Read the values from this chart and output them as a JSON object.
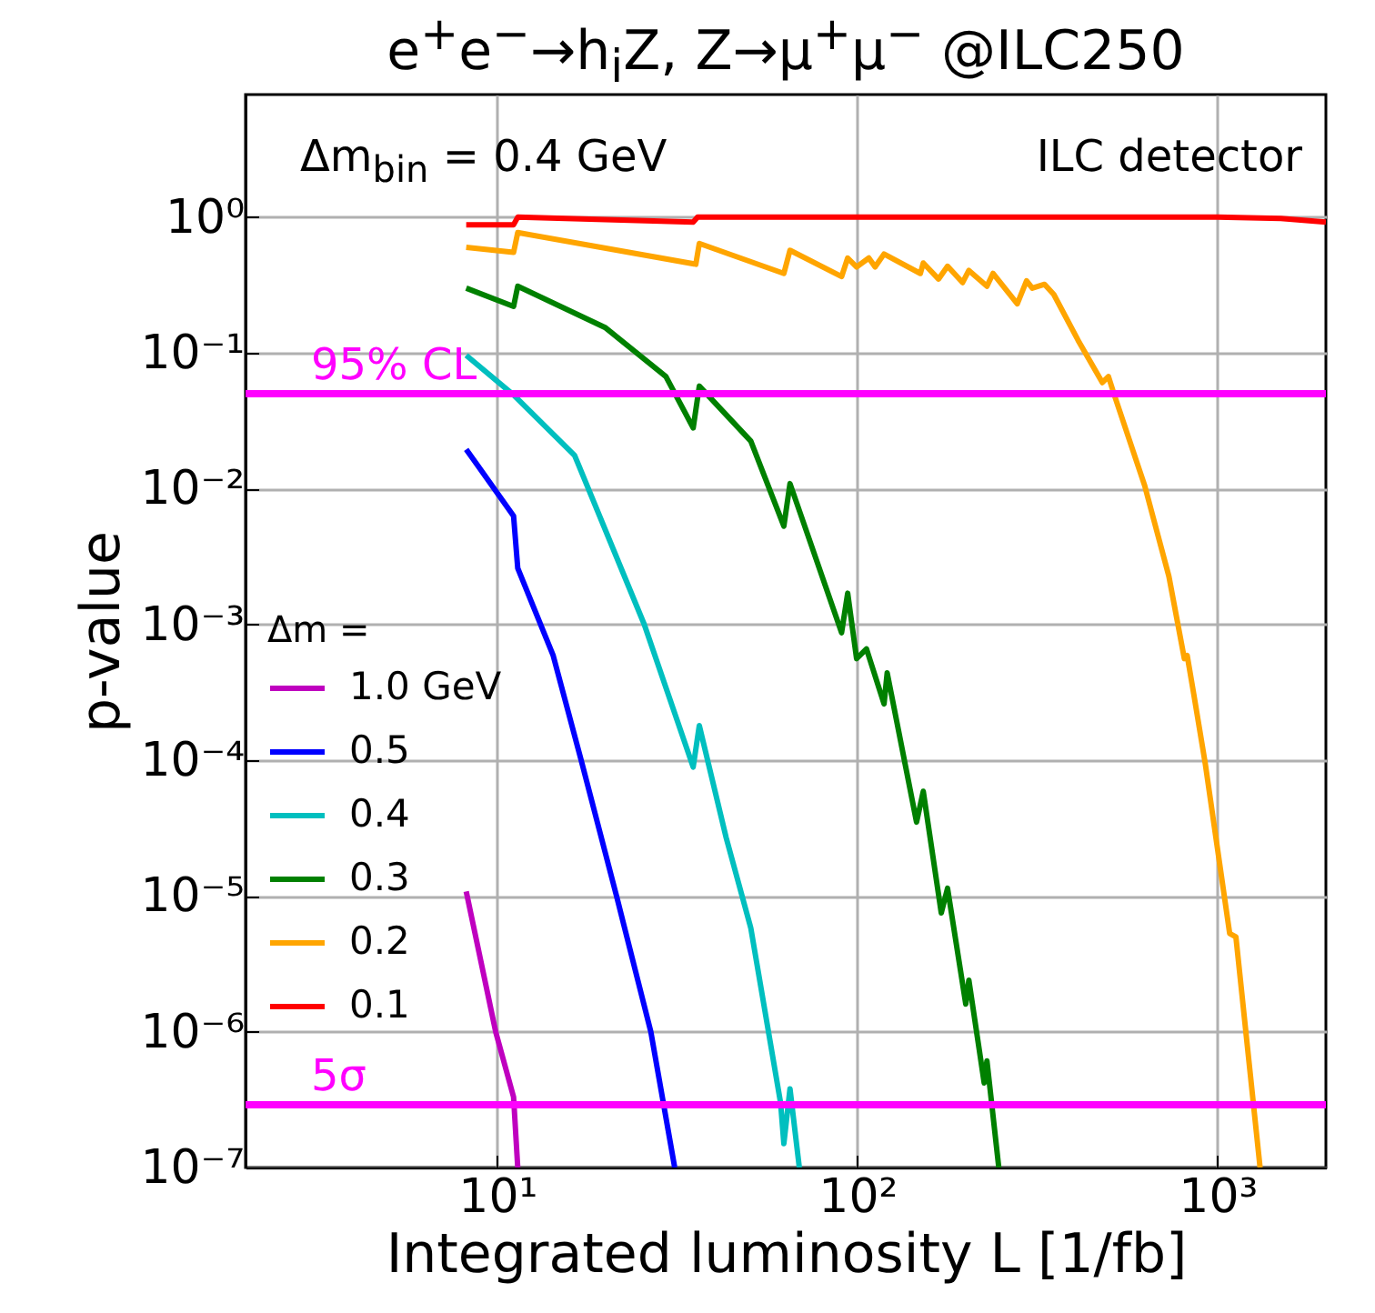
{
  "chart_data": {
    "type": "line",
    "title": "e$^{+}$e$^{−}$→h$_{i}$Z, Z→μ$^{+}$μ$^{−}$ @ILC250",
    "xlabel": "Integrated luminosity L [1/fb]",
    "ylabel": "p-value",
    "legend_title": "Δm =",
    "annotations": [
      "Δm$_{bin}$ = 0.4 GeV",
      "ILC detector"
    ],
    "log": "xy",
    "grid": true,
    "legend": "left",
    "xlim": [
      2,
      2000
    ],
    "ylim": [
      1e-07,
      8
    ],
    "xticks": [
      {
        "value": 10,
        "label": "10¹"
      },
      {
        "value": 100,
        "label": "10²"
      },
      {
        "value": 1000,
        "label": "10³"
      }
    ],
    "yticks": [
      {
        "value": 1e-07,
        "label": "10⁻⁷"
      },
      {
        "value": 1e-06,
        "label": "10⁻⁶"
      },
      {
        "value": 1e-05,
        "label": "10⁻⁵"
      },
      {
        "value": 0.0001,
        "label": "10⁻⁴"
      },
      {
        "value": 0.001,
        "label": "10⁻³"
      },
      {
        "value": 0.01,
        "label": "10⁻²"
      },
      {
        "value": 0.1,
        "label": "10⁻¹"
      },
      {
        "value": 1,
        "label": "10⁰"
      }
    ],
    "ref_lines": [
      {
        "axis": "y",
        "value": 0.05,
        "label": "95% CL",
        "color": "#ff00ff"
      },
      {
        "axis": "y",
        "value": 2.9e-07,
        "label": "5σ",
        "color": "#ff00ff"
      }
    ],
    "series": [
      {
        "name": "1.0 GeV",
        "color": "#bf00bf",
        "x": [
          8.2,
          9.9,
          11.1,
          11.4
        ],
        "values": [
          1.08e-05,
          1e-06,
          3.3e-07,
          1e-07
        ]
      },
      {
        "name": "0.5",
        "color": "#0000ff",
        "x": [
          8.2,
          11.1,
          11.4,
          14.3,
          17.1,
          21.5,
          26.7,
          31.1
        ],
        "values": [
          0.0195,
          0.0063,
          0.0026,
          0.00059,
          0.0001,
          9.7e-06,
          1e-06,
          1e-07
        ]
      },
      {
        "name": "0.4",
        "color": "#00bfbf",
        "x": [
          8.2,
          11.1,
          16.4,
          25.6,
          35,
          36.4,
          43.2,
          50.6,
          61.2,
          62.5,
          65,
          69
        ],
        "values": [
          0.096,
          0.049,
          0.0176,
          0.001,
          8.9e-05,
          0.00018,
          2.7e-05,
          5.8e-06,
          3e-07,
          1.5e-07,
          3.8e-07,
          1e-07
        ]
      },
      {
        "name": "0.3",
        "color": "#008000",
        "x": [
          8.2,
          11.1,
          11.4,
          20,
          29.4,
          35,
          36.4,
          50.6,
          62.5,
          65,
          90.4,
          94,
          99.5,
          106,
          118.6,
          121,
          146,
          152.4,
          171,
          178,
          200,
          204,
          225,
          229,
          247
        ],
        "values": [
          0.3,
          0.22,
          0.31,
          0.153,
          0.067,
          0.028,
          0.057,
          0.0224,
          0.0053,
          0.0109,
          0.00087,
          0.0017,
          0.00056,
          0.00066,
          0.00026,
          0.00044,
          3.5e-05,
          5.9e-05,
          7.5e-06,
          1.14e-05,
          1.6e-06,
          2.4e-06,
          4.2e-07,
          6.1e-07,
          1e-07
        ]
      },
      {
        "name": "0.2",
        "color": "#ffa500",
        "x": [
          8.2,
          11.1,
          11.4,
          35.6,
          36.4,
          62.5,
          65,
          90.4,
          94,
          99.5,
          107.6,
          112,
          118.6,
          149.6,
          152.4,
          168,
          178,
          196,
          204,
          229,
          238,
          278,
          295,
          306,
          331,
          351,
          410,
          479,
          498,
          517,
          628,
          733,
          809,
          824,
          857,
          925,
          1081,
          1125,
          1313
        ],
        "values": [
          0.6,
          0.55,
          0.77,
          0.45,
          0.64,
          0.385,
          0.57,
          0.365,
          0.5,
          0.43,
          0.5,
          0.43,
          0.535,
          0.385,
          0.46,
          0.35,
          0.435,
          0.33,
          0.405,
          0.31,
          0.385,
          0.23,
          0.34,
          0.3,
          0.32,
          0.27,
          0.124,
          0.0605,
          0.067,
          0.049,
          0.0105,
          0.00226,
          0.00056,
          0.00059,
          0.00032,
          9.4e-05,
          5.3e-06,
          5e-06,
          1e-07
        ]
      },
      {
        "name": "0.1",
        "color": "#ff0000",
        "x": [
          8.2,
          11.1,
          11.4,
          35,
          36,
          100,
          1000,
          1500,
          2000
        ],
        "values": [
          0.88,
          0.88,
          1.0,
          0.92,
          1.0,
          1.0,
          1.0,
          0.98,
          0.92
        ]
      }
    ]
  }
}
